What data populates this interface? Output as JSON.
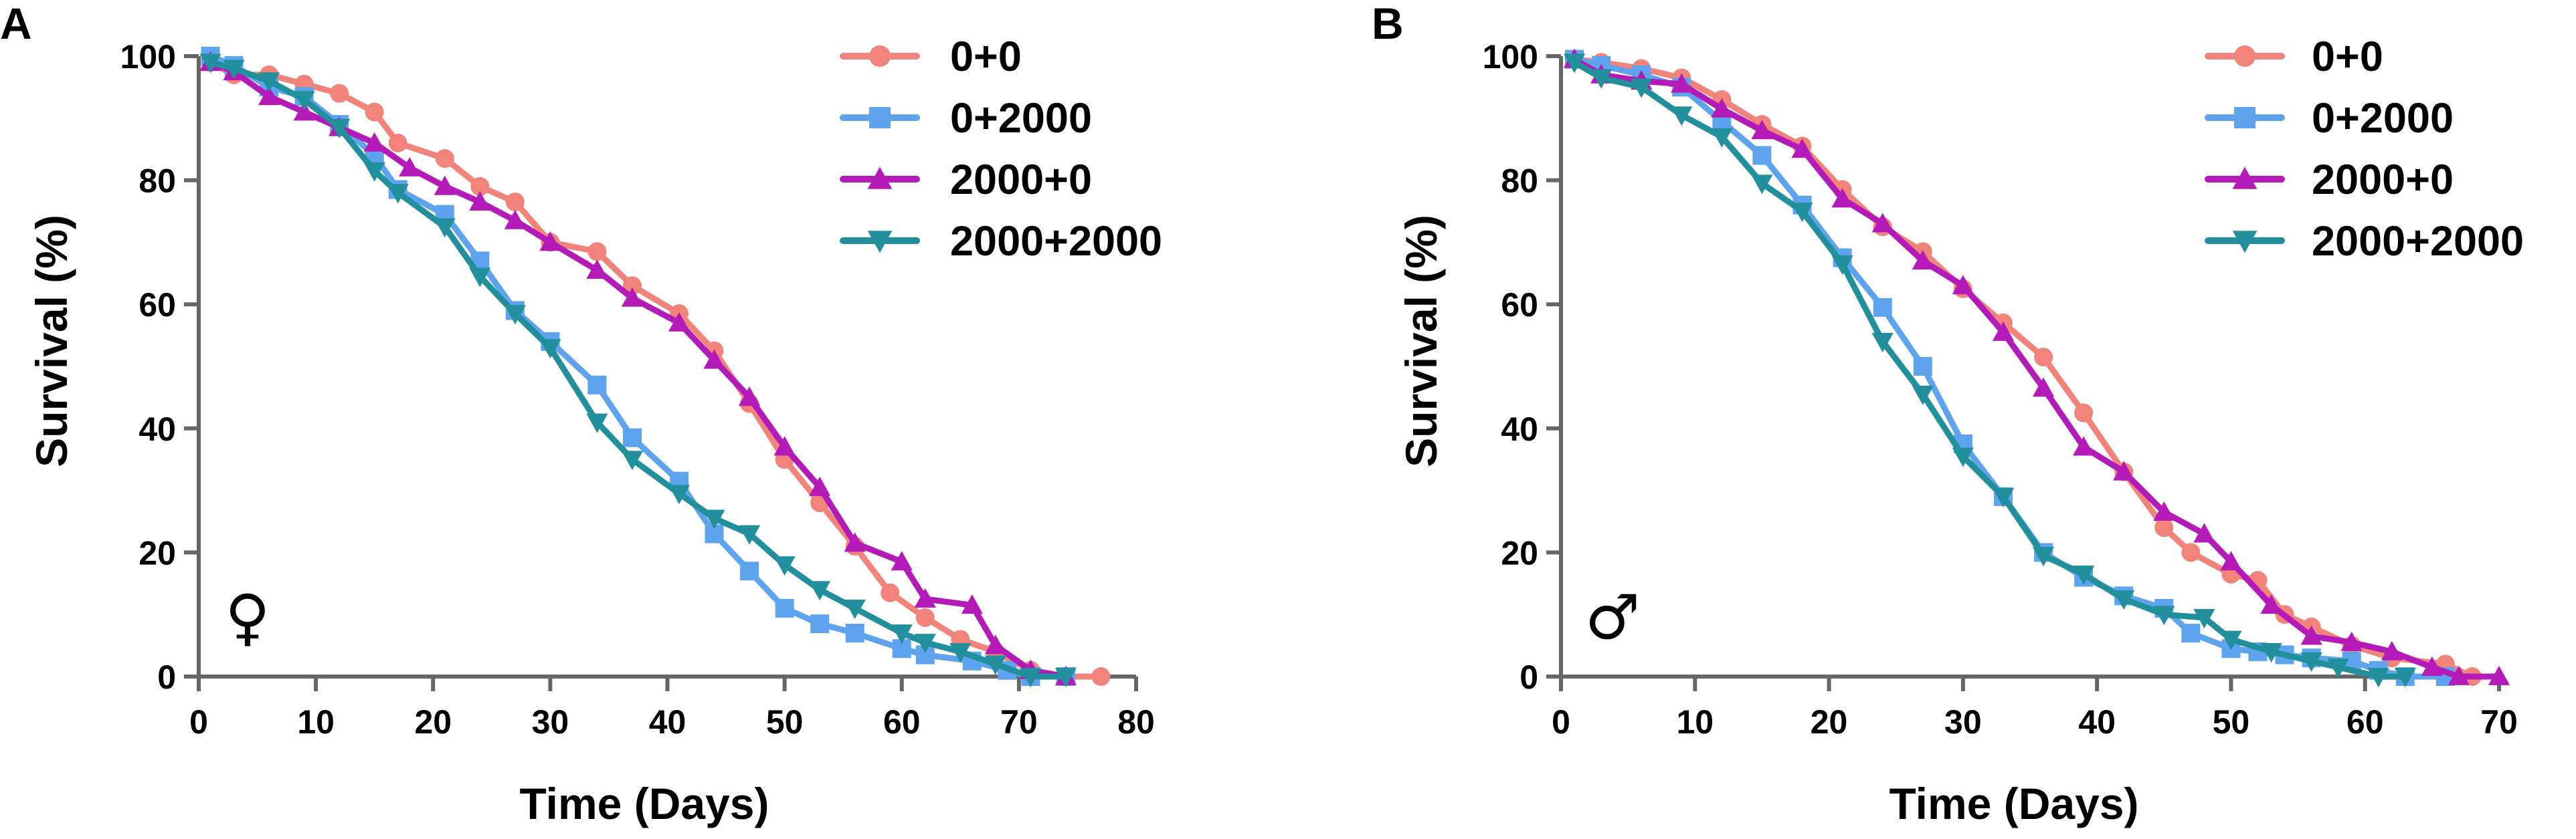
{
  "colors": {
    "s0_0": "#F2837A",
    "s0_2000": "#5DA3EE",
    "s2000_0": "#B31AB8",
    "s2000_2000": "#21909C"
  },
  "chart_data": [
    {
      "type": "line",
      "panel": "A",
      "sex_symbol": "♀",
      "xlabel": "Time (Days)",
      "ylabel": "Survival (%)",
      "xlim": [
        0,
        80
      ],
      "ylim": [
        0,
        100
      ],
      "xticks": [
        "0",
        "10",
        "20",
        "30",
        "40",
        "50",
        "60",
        "70",
        "80"
      ],
      "yticks": [
        "0",
        "20",
        "40",
        "60",
        "80",
        "100"
      ],
      "legend_position": "top-right",
      "series": [
        {
          "name": "0+0",
          "color_key": "s0_0",
          "marker": "circle",
          "x": [
            1,
            3,
            6,
            9,
            12,
            15,
            17,
            21,
            24,
            27,
            30,
            34,
            37,
            41,
            44,
            47,
            50,
            53,
            56,
            59,
            62,
            65,
            68,
            71,
            74,
            77
          ],
          "y": [
            99,
            97,
            97,
            95.5,
            94,
            91,
            86,
            83.5,
            79,
            76.5,
            70,
            68.5,
            63,
            58.5,
            52.5,
            44,
            35,
            28,
            21,
            13.5,
            9.5,
            6,
            4,
            1,
            0,
            0
          ]
        },
        {
          "name": "0+2000",
          "color_key": "s0_2000",
          "marker": "square",
          "x": [
            1,
            3,
            6,
            9,
            12,
            15,
            17,
            21,
            24,
            27,
            30,
            34,
            37,
            41,
            44,
            47,
            50,
            53,
            56,
            60,
            62,
            66,
            69,
            71,
            74
          ],
          "y": [
            100,
            98.5,
            95,
            93.5,
            89,
            84,
            78.5,
            74.5,
            67,
            59,
            54,
            47,
            38.5,
            31.5,
            23,
            17,
            11,
            8.5,
            7,
            4.5,
            3.5,
            2.5,
            1,
            0,
            0
          ]
        },
        {
          "name": "2000+0",
          "color_key": "s2000_0",
          "marker": "triangle-up",
          "x": [
            1,
            3,
            6,
            9,
            12,
            15,
            18,
            21,
            24,
            27,
            30,
            34,
            37,
            41,
            44,
            47,
            50,
            53,
            56,
            60,
            62,
            66,
            68,
            71,
            74
          ],
          "y": [
            99,
            97.5,
            93.5,
            91,
            88.5,
            86,
            82,
            79,
            76.5,
            73.5,
            70,
            65.5,
            61,
            57,
            51,
            45,
            37,
            30.5,
            21.5,
            18.5,
            12.5,
            11.5,
            5,
            1,
            0
          ]
        },
        {
          "name": "2000+2000",
          "color_key": "s2000_2000",
          "marker": "triangle-down",
          "x": [
            1,
            3,
            6,
            9,
            12,
            15,
            17,
            21,
            24,
            27,
            30,
            34,
            37,
            41,
            44,
            47,
            50,
            53,
            56,
            60,
            62,
            65,
            68,
            71,
            74
          ],
          "y": [
            99,
            98,
            96,
            93,
            88.5,
            81.5,
            78,
            72.5,
            64.5,
            58.5,
            53,
            41,
            35,
            29.5,
            25.5,
            23,
            18,
            14,
            11,
            7,
            5.5,
            4,
            2,
            0,
            0
          ]
        }
      ]
    },
    {
      "type": "line",
      "panel": "B",
      "sex_symbol": "♂",
      "xlabel": "Time (Days)",
      "ylabel": "Survival (%)",
      "xlim": [
        0,
        70
      ],
      "ylim": [
        0,
        100
      ],
      "xticks": [
        "0",
        "10",
        "20",
        "30",
        "40",
        "50",
        "60",
        "70"
      ],
      "yticks": [
        "0",
        "20",
        "40",
        "60",
        "80",
        "100"
      ],
      "legend_position": "top-right",
      "series": [
        {
          "name": "0+0",
          "color_key": "s0_0",
          "marker": "circle",
          "x": [
            1,
            3,
            6,
            9,
            12,
            15,
            18,
            21,
            24,
            27,
            30,
            33,
            36,
            39,
            42,
            45,
            47,
            50,
            52,
            54,
            56,
            59,
            62,
            66,
            68
          ],
          "y": [
            99.5,
            99,
            98,
            96.5,
            93,
            89,
            85.5,
            78.5,
            72.5,
            68.5,
            62.5,
            57,
            51.5,
            42.5,
            33,
            24,
            20,
            16.5,
            15.5,
            10,
            8,
            5,
            3,
            2,
            0
          ]
        },
        {
          "name": "0+2000",
          "color_key": "s0_2000",
          "marker": "square",
          "x": [
            1,
            3,
            6,
            9,
            12,
            15,
            18,
            21,
            24,
            27,
            30,
            33,
            36,
            39,
            42,
            45,
            47,
            50,
            52,
            54,
            56,
            59,
            61,
            63,
            66
          ],
          "y": [
            99.5,
            98.5,
            97,
            95,
            89.5,
            84,
            76,
            67.5,
            59.5,
            50,
            37.5,
            29,
            20,
            16,
            13,
            11,
            7,
            4.5,
            4,
            3.5,
            3,
            2.5,
            1,
            0,
            0
          ]
        },
        {
          "name": "2000+0",
          "color_key": "s2000_0",
          "marker": "triangle-up",
          "x": [
            1,
            3,
            6,
            9,
            12,
            15,
            18,
            21,
            24,
            27,
            30,
            33,
            36,
            39,
            42,
            45,
            48,
            50,
            53,
            56,
            59,
            62,
            65,
            67,
            70
          ],
          "y": [
            99.5,
            97,
            96,
            95.5,
            91.5,
            88,
            85,
            77,
            73,
            67,
            63,
            55.5,
            46.5,
            37,
            33,
            26.5,
            23,
            18.5,
            11.5,
            6.5,
            5.5,
            4,
            1.5,
            0,
            0
          ]
        },
        {
          "name": "2000+2000",
          "color_key": "s2000_2000",
          "marker": "triangle-down",
          "x": [
            1,
            3,
            6,
            9,
            12,
            15,
            18,
            21,
            24,
            27,
            30,
            33,
            36,
            39,
            42,
            45,
            48,
            50,
            53,
            56,
            58,
            61,
            63
          ],
          "y": [
            99,
            96.5,
            95,
            90.5,
            87,
            79.5,
            75,
            66.5,
            54,
            45.5,
            35.5,
            29,
            19.5,
            16.5,
            12.5,
            10,
            9.5,
            6,
            4,
            2.5,
            1.5,
            0,
            0
          ]
        }
      ]
    }
  ]
}
